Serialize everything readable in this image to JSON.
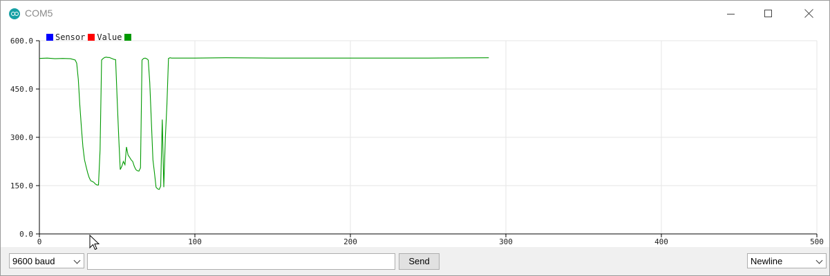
{
  "window": {
    "title": "COM5"
  },
  "legend": [
    {
      "label": "Sensor",
      "color": "#0000ff"
    },
    {
      "label": "Value",
      "color": "#ff0000"
    },
    {
      "label": "",
      "color": "#009900"
    }
  ],
  "chart_data": {
    "type": "line",
    "title": "",
    "xlabel": "",
    "ylabel": "",
    "xlim": [
      0,
      500
    ],
    "ylim": [
      0,
      600
    ],
    "x_ticks": [
      "0",
      "100",
      "200",
      "300",
      "400",
      "500"
    ],
    "y_ticks": [
      "0.0",
      "150.0",
      "300.0",
      "450.0",
      "600.0"
    ],
    "grid": true,
    "series": [
      {
        "color": "#009900",
        "x": [
          0,
          5,
          10,
          15,
          20,
          23,
          24,
          25,
          26,
          27,
          28,
          29,
          30,
          31,
          32,
          33,
          34,
          35,
          36,
          37,
          38,
          39,
          40,
          41,
          42,
          43,
          44,
          45,
          46,
          47,
          48,
          49,
          50,
          51,
          52,
          53,
          54,
          55,
          56,
          57,
          58,
          59,
          60,
          61,
          62,
          63,
          64,
          65,
          66,
          67,
          68,
          69,
          70,
          71,
          72,
          73,
          74,
          75,
          76,
          77,
          78,
          79,
          80,
          81,
          82,
          83,
          84,
          85,
          90,
          100,
          120,
          150,
          200,
          250,
          289
        ],
        "y": [
          545,
          546,
          544,
          545,
          544,
          540,
          530,
          480,
          400,
          330,
          270,
          230,
          210,
          190,
          175,
          165,
          163,
          160,
          155,
          152,
          152,
          260,
          540,
          545,
          548,
          549,
          548,
          548,
          546,
          544,
          542,
          541,
          420,
          300,
          200,
          210,
          225,
          215,
          270,
          245,
          238,
          230,
          225,
          210,
          200,
          196,
          195,
          205,
          540,
          545,
          546,
          544,
          540,
          470,
          350,
          230,
          190,
          145,
          140,
          138,
          148,
          355,
          145,
          300,
          400,
          545,
          547,
          546,
          546,
          546,
          547,
          546,
          546,
          546,
          547
        ]
      }
    ]
  },
  "controls": {
    "baud": "9600 baud",
    "send_input_value": "",
    "send_label": "Send",
    "line_ending": "Newline"
  }
}
